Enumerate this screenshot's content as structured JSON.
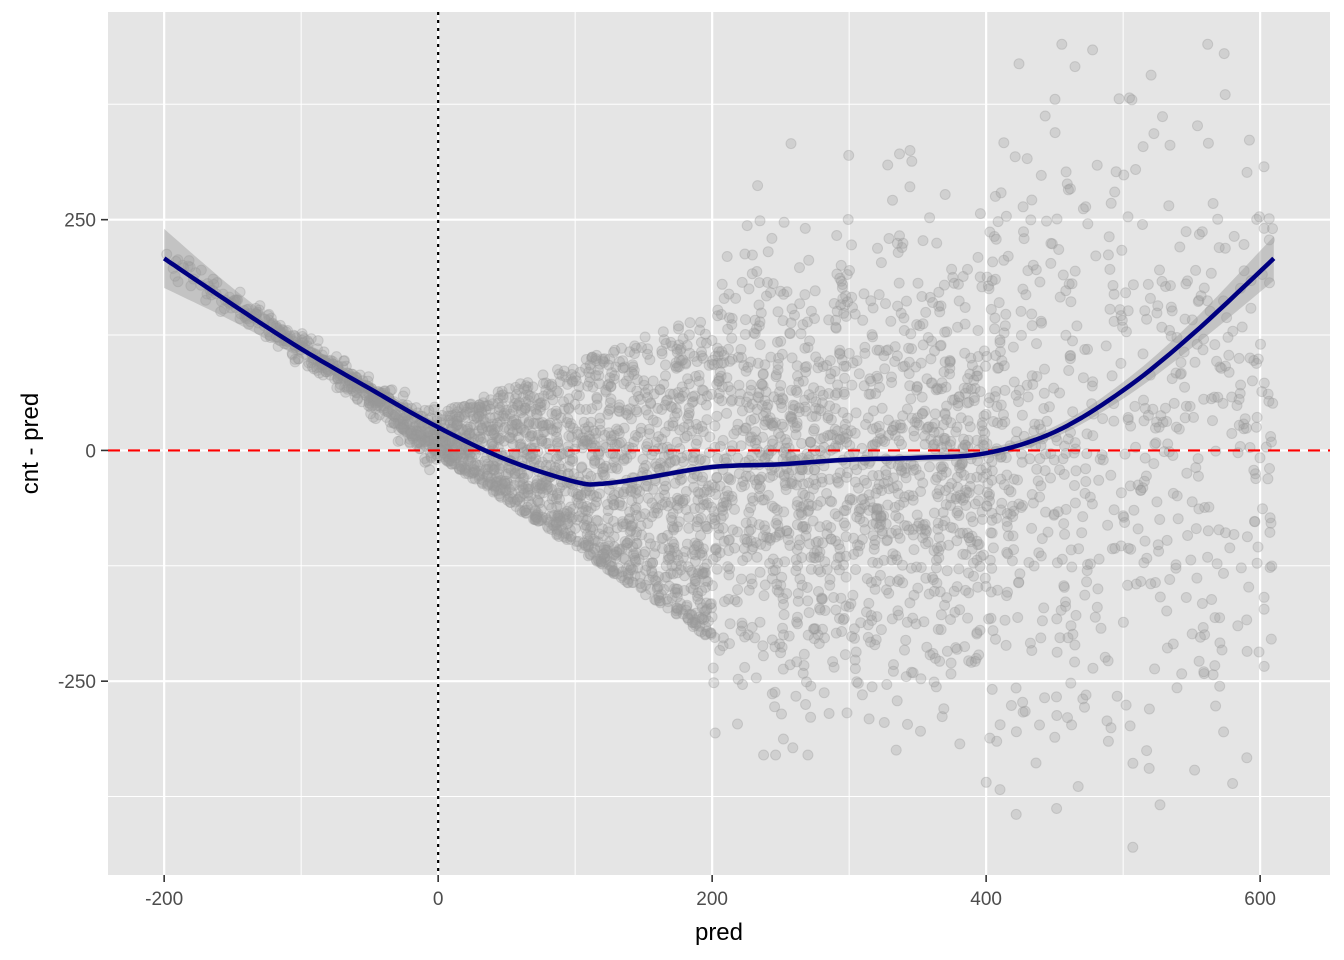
{
  "chart_data": {
    "type": "scatter",
    "title": "",
    "xlabel": "pred",
    "ylabel": "cnt - pred",
    "xlim": [
      -241,
      651
    ],
    "ylim": [
      -460,
      475
    ],
    "x_ticks": [
      -200,
      0,
      200,
      400,
      600
    ],
    "x_tick_labels": [
      "-200",
      "0",
      "200",
      "400",
      "600"
    ],
    "y_ticks": [
      -250,
      0,
      250
    ],
    "y_tick_labels": [
      "-250",
      "0",
      "250"
    ],
    "grid": true,
    "legend": "none",
    "background": "#e5e5e5",
    "colors": {
      "points": "#999999",
      "smooth_line": "#000080",
      "confidence_band": "#999999",
      "zero_hline": "#ff0000",
      "zero_vline": "#000000"
    },
    "reference_lines": [
      {
        "orientation": "horizontal",
        "value": 0,
        "style": "dashed",
        "color": "#ff0000"
      },
      {
        "orientation": "vertical",
        "value": 0,
        "style": "dotted",
        "color": "#000000"
      }
    ],
    "points_note_free": true,
    "point_bands": [
      {
        "x_range": [
          -200,
          0
        ],
        "y_center_at_x0": 20,
        "slope": -1.0,
        "spread": 20
      },
      {
        "x_range": [
          0,
          200
        ],
        "y_upper": 120,
        "y_lower_slope": -1.0,
        "lower_offset": -10
      },
      {
        "x_range": [
          200,
          400
        ],
        "y_range": [
          -320,
          360
        ]
      },
      {
        "x_range": [
          400,
          610
        ],
        "y_range": [
          -420,
          440
        ]
      }
    ],
    "series": [
      {
        "name": "",
        "kind": "smooth",
        "x": [
          -200,
          -150,
          -100,
          -50,
          0,
          50,
          100,
          120,
          150,
          200,
          250,
          300,
          350,
          400,
          450,
          500,
          550,
          610
        ],
        "y": [
          208,
          158,
          110,
          67,
          25,
          -10,
          -34,
          -36,
          -30,
          -18,
          -15,
          -10,
          -8,
          -3,
          20,
          65,
          125,
          208
        ],
        "ci_halfwidth": [
          32,
          18,
          10,
          6,
          4,
          3,
          3,
          3,
          3,
          3,
          3,
          3,
          4,
          5,
          6,
          9,
          14,
          24
        ]
      }
    ]
  }
}
